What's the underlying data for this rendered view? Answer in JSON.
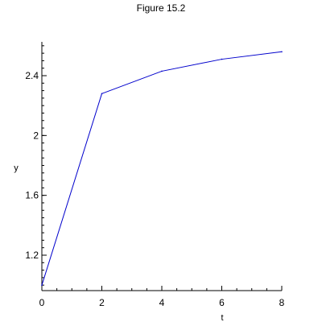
{
  "chart_data": {
    "type": "line",
    "title": "Figure 15.2",
    "xlabel": "t",
    "ylabel": "y",
    "xlim": [
      0,
      8
    ],
    "ylim": [
      0.98,
      2.6
    ],
    "x_ticks": [
      0,
      2,
      4,
      6,
      8
    ],
    "x_tick_labels": [
      "0",
      "2",
      "4",
      "6",
      "8"
    ],
    "y_ticks": [
      1.2,
      1.6,
      2,
      2.4
    ],
    "y_tick_labels": [
      "1.2",
      "1.6",
      "2",
      "2.4"
    ],
    "grid": false,
    "series": [
      {
        "x": [
          0,
          2,
          4,
          6,
          8
        ],
        "values": [
          1.0,
          2.28,
          2.43,
          2.51,
          2.56
        ],
        "color": "#0000cc"
      }
    ]
  }
}
